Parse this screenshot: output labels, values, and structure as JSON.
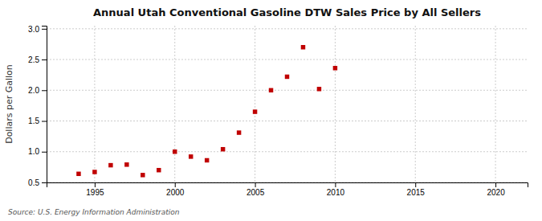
{
  "chart_data": {
    "type": "scatter",
    "title": "Annual Utah Conventional Gasoline DTW Sales Price by All Sellers",
    "ylabel": "Dollars per Gallon",
    "annotations": [
      "Source: U.S. Energy Information Administration"
    ],
    "x": [
      1994,
      1995,
      1996,
      1997,
      1998,
      1999,
      2000,
      2001,
      2002,
      2003,
      2004,
      2005,
      2006,
      2007,
      2008,
      2009,
      2010
    ],
    "values": [
      0.64,
      0.67,
      0.78,
      0.79,
      0.62,
      0.7,
      1.0,
      0.92,
      0.86,
      1.04,
      1.31,
      1.65,
      2.0,
      2.22,
      2.7,
      2.02,
      2.36
    ],
    "color": "#c00000",
    "marker": "square",
    "xlim": [
      1992,
      2022
    ],
    "ylim": [
      0.5,
      3.05
    ],
    "xticks": [
      1995,
      2000,
      2005,
      2010,
      2015,
      2020
    ],
    "yticks": [
      0.5,
      {
        "value": 1.0,
        "label": "1.0"
      },
      1.5,
      {
        "value": 2.0,
        "label": "2.0"
      },
      2.5,
      {
        "value": 3.0,
        "label": "3.0"
      }
    ],
    "grid": true
  }
}
